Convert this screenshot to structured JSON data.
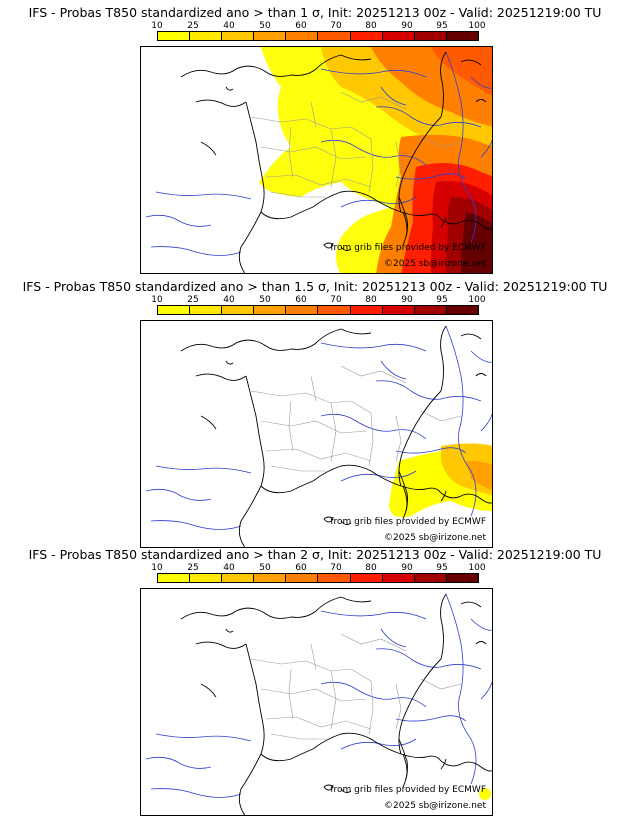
{
  "colorbar": {
    "ticks": [
      "10",
      "25",
      "40",
      "50",
      "60",
      "70",
      "80",
      "90",
      "95",
      "100"
    ],
    "colors": [
      "#ffff00",
      "#ffea00",
      "#ffc800",
      "#ffa000",
      "#ff8000",
      "#ff5a00",
      "#ff1e00",
      "#d70000",
      "#a00000",
      "#640000"
    ]
  },
  "panels": [
    {
      "title": "IFS - Probas T850  standardized ano > than 1 σ, Init: 20251213 00z - Valid: 20251219:00 TU",
      "credit_source": "from grib files provided by ECMWF",
      "credit_copyright": "©2025 sb@irizone.net"
    },
    {
      "title": "IFS - Probas T850  standardized ano > than 1.5 σ, Init: 20251213 00z - Valid: 20251219:00 TU",
      "credit_source": "from grib files provided by ECMWF",
      "credit_copyright": "©2025 sb@irizone.net"
    },
    {
      "title": "IFS - Probas T850  standardized ano > than 2 σ, Init: 20251213 00z - Valid: 20251219:00 TU",
      "credit_source": "from grib files provided by ECMWF",
      "credit_copyright": "©2025 sb@irizone.net"
    }
  ]
}
